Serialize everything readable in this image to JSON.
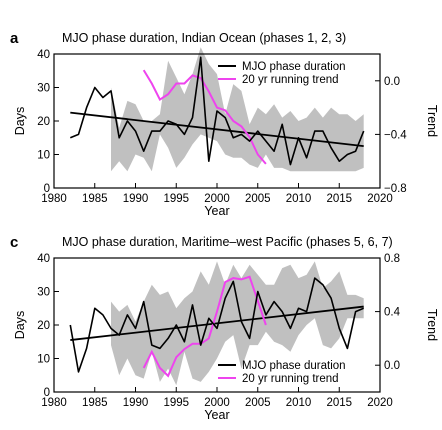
{
  "figure": {
    "background": "#ffffff"
  },
  "chart_data": [
    {
      "type": "line",
      "panel_letter": "a",
      "title": "MJO phase duration, Indian Ocean (phases 1, 2, 3)",
      "xlabel": "Year",
      "ylabel": "Days",
      "y2label": "Trend",
      "xlim": [
        1980,
        2020
      ],
      "ylim": [
        0,
        40
      ],
      "y2lim": [
        -0.8,
        0.2
      ],
      "xticks": [
        1980,
        1985,
        1990,
        1995,
        2000,
        2005,
        2010,
        2015,
        2020
      ],
      "yticks": [
        0,
        10,
        20,
        30,
        40
      ],
      "y2ticks": [
        -0.8,
        -0.4,
        0.0
      ],
      "y2ticklabels": [
        "−0.8",
        "−0.4",
        "0.0"
      ],
      "legend": {
        "position": "top-right",
        "entries": [
          {
            "label": "MJO phase duration",
            "color": "#000000"
          },
          {
            "label": "20 yr running trend",
            "color": "#ee44ee"
          }
        ]
      },
      "series": [
        {
          "name": "MJO phase duration",
          "axis": "left",
          "color": "#000000",
          "x": [
            1982,
            1983,
            1984,
            1985,
            1986,
            1987,
            1988,
            1989,
            1990,
            1991,
            1992,
            1993,
            1994,
            1995,
            1996,
            1997,
            1998,
            1999,
            2000,
            2001,
            2002,
            2003,
            2004,
            2005,
            2006,
            2007,
            2008,
            2009,
            2010,
            2011,
            2012,
            2013,
            2014,
            2015,
            2016,
            2017,
            2018
          ],
          "y": [
            15,
            16,
            24,
            30,
            27,
            29,
            15,
            20,
            17,
            11,
            17,
            17,
            20,
            19,
            16,
            21,
            39,
            8,
            23,
            21,
            15,
            16,
            14,
            17,
            14,
            11,
            19,
            7,
            15,
            9,
            17,
            17,
            12,
            8,
            10,
            11,
            17
          ]
        },
        {
          "name": "trend line",
          "axis": "left",
          "color": "#000000",
          "x": [
            1982,
            2018
          ],
          "y": [
            22.5,
            12.5
          ]
        },
        {
          "name": "20 yr running trend",
          "axis": "right",
          "color": "#ee44ee",
          "x": [
            1991,
            1992,
            1993,
            1994,
            1995,
            1996,
            1997,
            1998,
            1999,
            2000,
            2001,
            2002,
            2003,
            2004,
            2005,
            2006
          ],
          "y": [
            0.08,
            -0.02,
            -0.14,
            -0.1,
            -0.02,
            -0.02,
            0.04,
            0.02,
            -0.08,
            -0.2,
            -0.22,
            -0.3,
            -0.34,
            -0.42,
            -0.55,
            -0.62
          ]
        },
        {
          "name": "uncertainty range",
          "axis": "left",
          "type": "area",
          "color": "#c0c0c0",
          "x": [
            1987,
            1988,
            1989,
            1990,
            1991,
            1992,
            1993,
            1994,
            1995,
            1996,
            1997,
            1998,
            1999,
            2000,
            2001,
            2002,
            2003,
            2004,
            2005,
            2006,
            2007,
            2008,
            2009,
            2010,
            2011,
            2012,
            2013,
            2014,
            2015,
            2016,
            2017,
            2018
          ],
          "lower": [
            5,
            8,
            5,
            10,
            9,
            5,
            16,
            12,
            6,
            9,
            13,
            16,
            15,
            14,
            10,
            9,
            9,
            7,
            6,
            10,
            6,
            6,
            5,
            5,
            5,
            5,
            5,
            5,
            5,
            5,
            5,
            6
          ],
          "upper": [
            30,
            18,
            26,
            25,
            20,
            20,
            22,
            38,
            33,
            28,
            34,
            42,
            37,
            34,
            22,
            31,
            29,
            19,
            24,
            22,
            25,
            21,
            23,
            20,
            21,
            24,
            21,
            24,
            22,
            22,
            20,
            22
          ]
        }
      ]
    },
    {
      "type": "line",
      "panel_letter": "c",
      "title": "MJO phase duration, Maritime–west Pacific (phases 5, 6, 7)",
      "xlabel": "Year",
      "ylabel": "Days",
      "y2label": "Trend",
      "xlim": [
        1980,
        2020
      ],
      "ylim": [
        0,
        40
      ],
      "y2lim": [
        -0.2,
        0.8
      ],
      "xticks": [
        1980,
        1985,
        1990,
        1995,
        2000,
        2005,
        2010,
        2015,
        2020
      ],
      "yticks": [
        0,
        10,
        20,
        30,
        40
      ],
      "y2ticks": [
        0.0,
        0.4,
        0.8
      ],
      "y2ticklabels": [
        "0.0",
        "0.4",
        "0.8"
      ],
      "legend": {
        "position": "bottom-right",
        "entries": [
          {
            "label": "MJO phase duration",
            "color": "#000000"
          },
          {
            "label": "20 yr running trend",
            "color": "#ee44ee"
          }
        ]
      },
      "series": [
        {
          "name": "MJO phase duration",
          "axis": "left",
          "color": "#000000",
          "x": [
            1982,
            1983,
            1984,
            1985,
            1986,
            1987,
            1988,
            1989,
            1990,
            1991,
            1992,
            1993,
            1994,
            1995,
            1996,
            1997,
            1998,
            1999,
            2000,
            2001,
            2002,
            2003,
            2004,
            2005,
            2006,
            2007,
            2008,
            2009,
            2010,
            2011,
            2012,
            2013,
            2014,
            2015,
            2016,
            2017,
            2018
          ],
          "y": [
            20,
            6,
            13,
            25,
            23,
            19,
            17,
            23,
            19,
            27,
            14,
            13,
            16,
            20,
            15,
            26,
            14,
            22,
            19,
            28,
            33,
            21,
            16,
            30,
            23,
            27,
            24,
            19,
            25,
            24,
            34,
            32,
            28,
            19,
            13,
            24,
            25
          ]
        },
        {
          "name": "trend line",
          "axis": "left",
          "color": "#000000",
          "x": [
            1982,
            2018
          ],
          "y": [
            15.5,
            25.5
          ]
        },
        {
          "name": "20 yr running trend",
          "axis": "right",
          "color": "#ee44ee",
          "x": [
            1991,
            1992,
            1993,
            1994,
            1995,
            1996,
            1997,
            1998,
            1999,
            2000,
            2001,
            2002,
            2003,
            2004,
            2005,
            2006
          ],
          "y": [
            -0.02,
            0.1,
            -0.02,
            -0.08,
            0.06,
            0.12,
            0.16,
            0.16,
            0.2,
            0.4,
            0.62,
            0.65,
            0.64,
            0.66,
            0.48,
            0.3
          ]
        },
        {
          "name": "uncertainty range",
          "axis": "left",
          "type": "area",
          "color": "#c0c0c0",
          "x": [
            1987,
            1988,
            1989,
            1990,
            1991,
            1992,
            1993,
            1994,
            1995,
            1996,
            1997,
            1998,
            1999,
            2000,
            2001,
            2002,
            2003,
            2004,
            2005,
            2006,
            2007,
            2008,
            2009,
            2010,
            2011,
            2012,
            2013,
            2014,
            2015,
            2016,
            2017,
            2018
          ],
          "lower": [
            14,
            5,
            10,
            5,
            4,
            12,
            3,
            7,
            2,
            12,
            4,
            3,
            6,
            10,
            15,
            17,
            7,
            14,
            14,
            18,
            15,
            14,
            12,
            17,
            20,
            22,
            14,
            13,
            16,
            22,
            22,
            22
          ],
          "upper": [
            27,
            24,
            26,
            21,
            27,
            32,
            29,
            30,
            25,
            28,
            30,
            36,
            32,
            39,
            32,
            38,
            34,
            38,
            35,
            32,
            32,
            37,
            38,
            34,
            35,
            39,
            31,
            33,
            36,
            29,
            29,
            28
          ]
        }
      ]
    }
  ]
}
